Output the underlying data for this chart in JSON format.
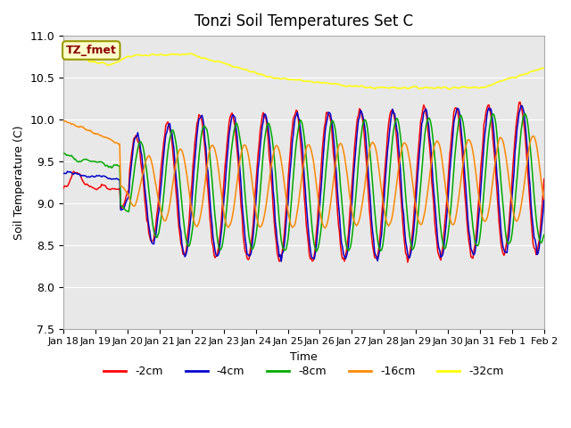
{
  "title": "Tonzi Soil Temperatures Set C",
  "xlabel": "Time",
  "ylabel": "Soil Temperature (C)",
  "ylim": [
    7.5,
    11.0
  ],
  "bg_color": "#e8e8e8",
  "fig_color": "#ffffff",
  "annotation_text": "TZ_fmet",
  "annotation_bg": "#ffffcc",
  "annotation_fg": "#8b0000",
  "series_labels": [
    "-2cm",
    "-4cm",
    "-8cm",
    "-16cm",
    "-32cm"
  ],
  "series_colors": [
    "#ff0000",
    "#0000cd",
    "#00aa00",
    "#ff8800",
    "#ffff00"
  ],
  "x_tick_labels": [
    "Jan 18",
    "Jan 19",
    "Jan 20",
    "Jan 21",
    "Jan 22",
    "Jan 23",
    "Jan 24",
    "Jan 25",
    "Jan 26",
    "Jan 27",
    "Jan 28",
    "Jan 29",
    "Jan 30",
    "Jan 31",
    "Feb 1",
    "Feb 2"
  ],
  "n_points": 480,
  "legend_loc": "lower center"
}
